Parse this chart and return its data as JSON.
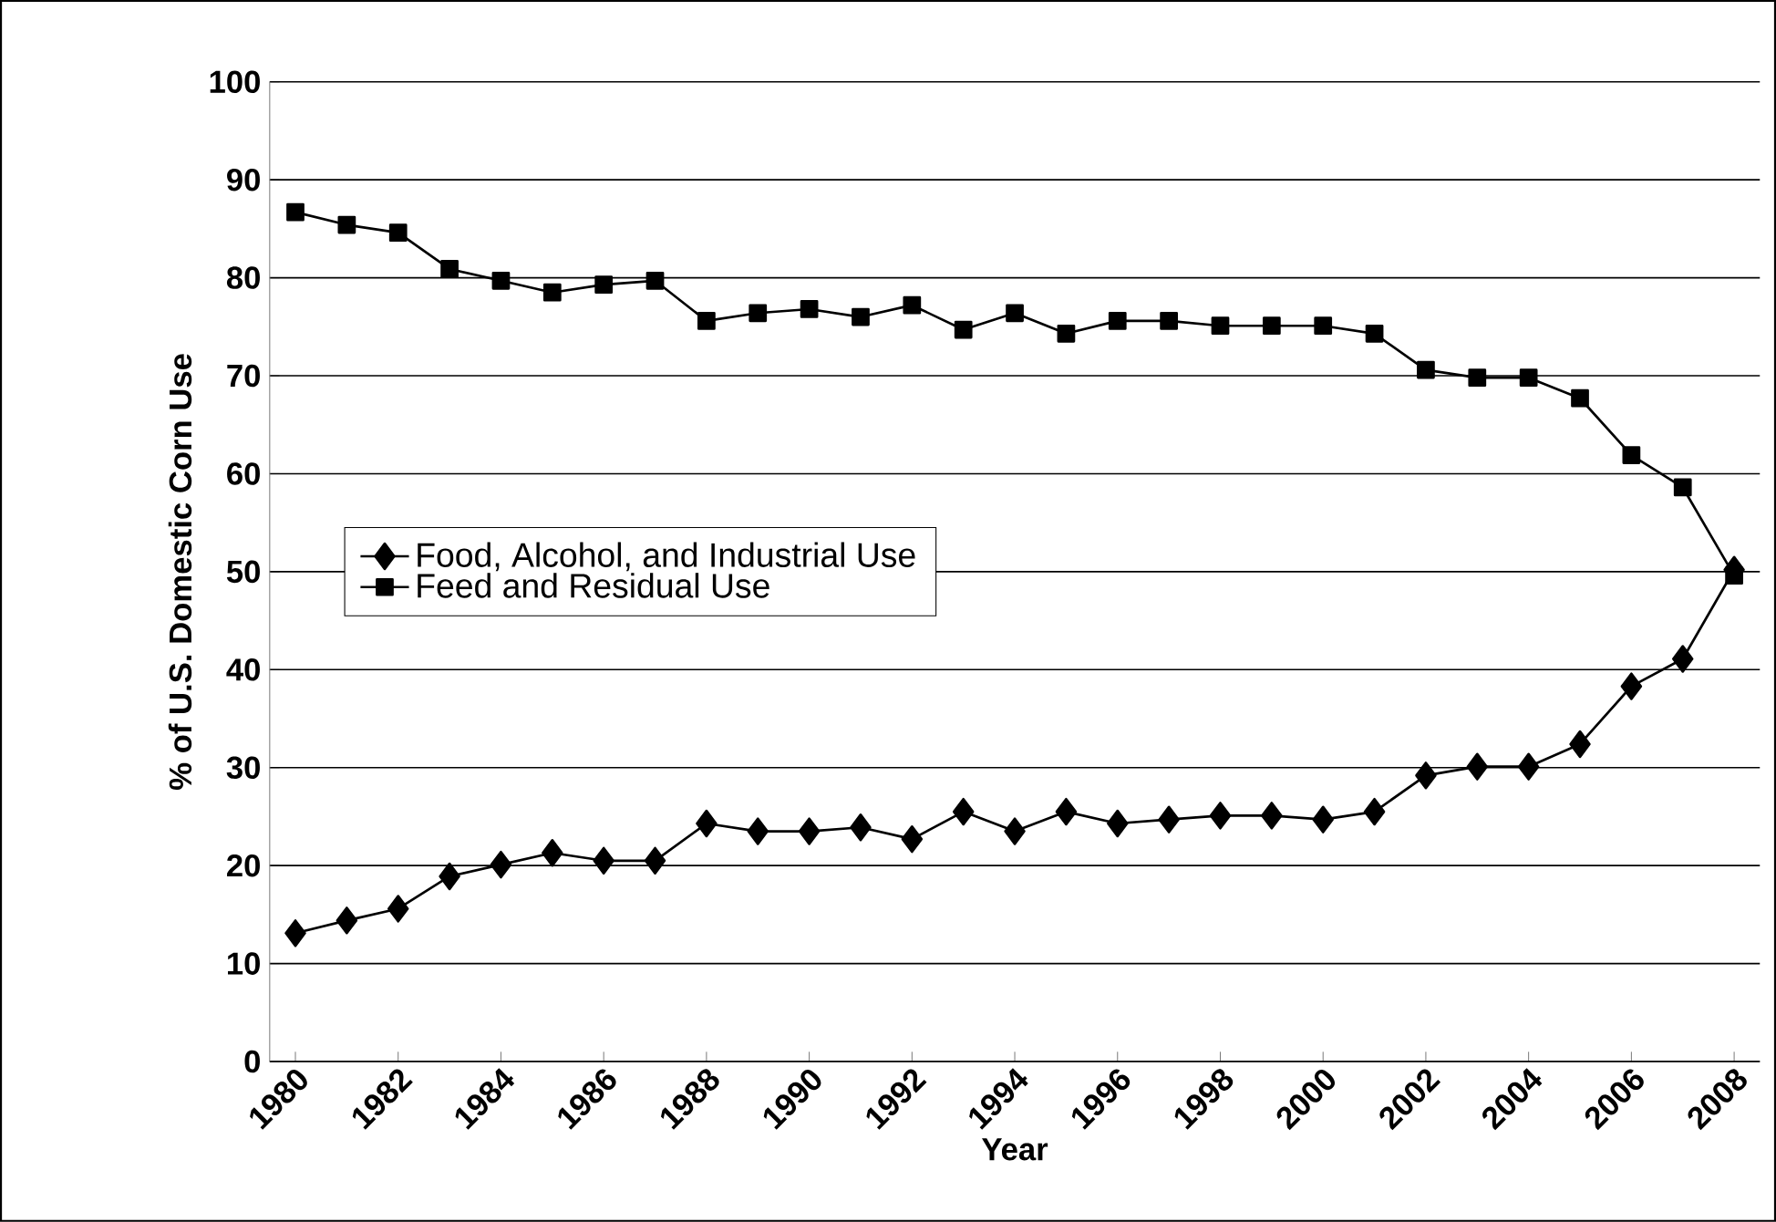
{
  "chart_data": {
    "type": "line",
    "xlabel": "Year",
    "ylabel": "% of U.S. Domestic Corn Use",
    "categories": [
      "1980",
      null,
      "1982",
      null,
      "1984",
      null,
      "1986",
      null,
      "1988",
      null,
      "1990",
      null,
      "1992",
      null,
      "1994",
      null,
      "1996",
      null,
      "1998",
      null,
      "2000",
      null,
      "2002",
      null,
      "2004",
      null,
      "2006",
      null,
      "2008"
    ],
    "series": [
      {
        "name": "Food, Alcohol, and Industrial Use",
        "color": "#000000",
        "marker": "diamond",
        "values": [
          13.1,
          14.4,
          15.6,
          18.9,
          20.1,
          21.3,
          20.5,
          20.5,
          24.3,
          23.5,
          23.5,
          23.9,
          22.7,
          25.5,
          23.5,
          25.5,
          24.3,
          24.7,
          25.1,
          25.1,
          24.7,
          25.5,
          29.2,
          30.1,
          30.1,
          32.4,
          38.3,
          41.1,
          50.2
        ]
      },
      {
        "name": "Feed and Residual Use",
        "color": "#000000",
        "marker": "square",
        "values": [
          86.7,
          85.4,
          84.6,
          80.9,
          79.7,
          78.5,
          79.3,
          79.7,
          75.6,
          76.4,
          76.8,
          76.0,
          77.2,
          74.7,
          76.4,
          74.3,
          75.6,
          75.6,
          75.1,
          75.1,
          75.1,
          74.3,
          70.6,
          69.8,
          69.8,
          67.7,
          61.9,
          58.6,
          49.6
        ]
      }
    ],
    "ylim": [
      0,
      100
    ],
    "yticks": [
      0,
      10,
      20,
      30,
      40,
      50,
      60,
      70,
      80,
      90,
      100
    ],
    "grid": "y",
    "legend": "left",
    "line_style": "solid"
  }
}
